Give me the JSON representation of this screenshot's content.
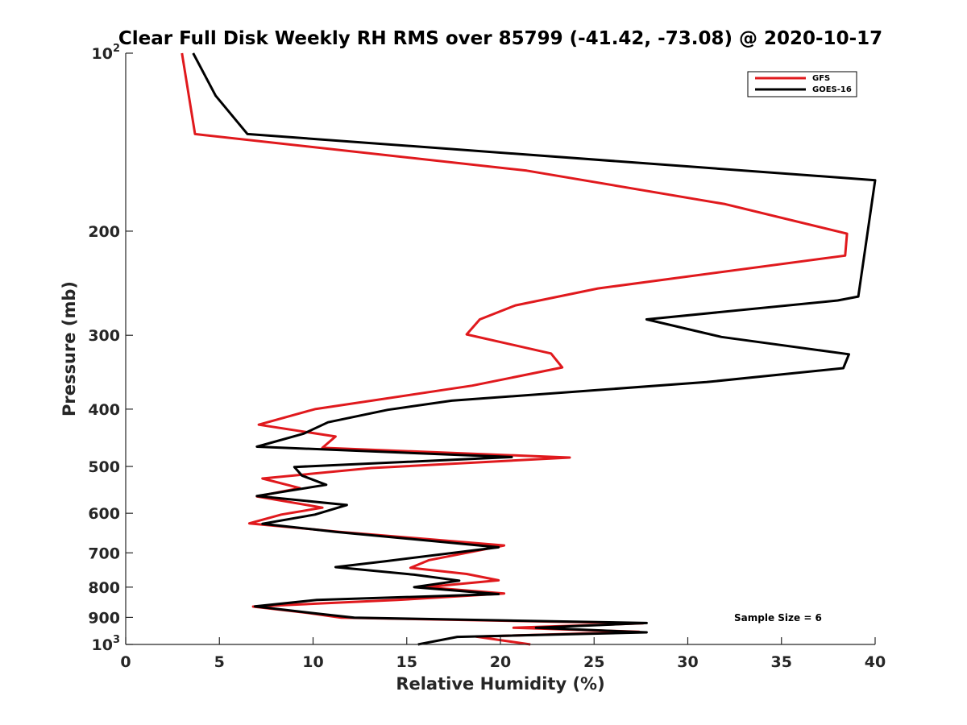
{
  "chart_data": {
    "type": "line",
    "title": "Clear Full Disk Weekly RH RMS over 85799 (-41.42, -73.08) @ 2020-10-17",
    "xlabel": "Relative Humidity (%)",
    "ylabel": "Pressure (mb)",
    "xlim": [
      0,
      40
    ],
    "ylim": [
      100,
      1000
    ],
    "yscale": "log",
    "y_reversed": true,
    "grid": false,
    "x_ticks": [
      {
        "value": 0,
        "label": "0"
      },
      {
        "value": 5,
        "label": "5"
      },
      {
        "value": 10,
        "label": "10"
      },
      {
        "value": 15,
        "label": "15"
      },
      {
        "value": 20,
        "label": "20"
      },
      {
        "value": 25,
        "label": "25"
      },
      {
        "value": 30,
        "label": "30"
      },
      {
        "value": 35,
        "label": "35"
      },
      {
        "value": 40,
        "label": "40"
      }
    ],
    "y_ticks": [
      {
        "value": 100,
        "label": "10",
        "sup": "2"
      },
      {
        "value": 200,
        "label": "200"
      },
      {
        "value": 300,
        "label": "300"
      },
      {
        "value": 400,
        "label": "400"
      },
      {
        "value": 500,
        "label": "500"
      },
      {
        "value": 600,
        "label": "600"
      },
      {
        "value": 700,
        "label": "700"
      },
      {
        "value": 800,
        "label": "800"
      },
      {
        "value": 900,
        "label": "900"
      },
      {
        "value": 1000,
        "label": "10",
        "sup": "3"
      }
    ],
    "legend": {
      "placement": "top-right"
    },
    "annotation": "Sample Size = 6",
    "series": [
      {
        "name": "GFS",
        "color": "#e0191d",
        "points": [
          [
            3.0,
            100
          ],
          [
            3.7,
            137
          ],
          [
            21.4,
            158
          ],
          [
            32.0,
            180
          ],
          [
            38.5,
            202
          ],
          [
            38.4,
            220
          ],
          [
            25.2,
            250
          ],
          [
            20.8,
            267
          ],
          [
            18.9,
            282
          ],
          [
            18.2,
            299
          ],
          [
            22.7,
            322
          ],
          [
            23.3,
            340
          ],
          [
            18.5,
            365
          ],
          [
            10.1,
            400
          ],
          [
            7.1,
            425
          ],
          [
            11.2,
            445
          ],
          [
            10.5,
            465
          ],
          [
            23.7,
            483
          ],
          [
            13.1,
            503
          ],
          [
            7.3,
            524
          ],
          [
            9.3,
            544
          ],
          [
            7.0,
            562
          ],
          [
            10.5,
            587
          ],
          [
            8.3,
            603
          ],
          [
            6.6,
            624
          ],
          [
            11.4,
            645
          ],
          [
            20.2,
            680
          ],
          [
            16.2,
            720
          ],
          [
            15.2,
            742
          ],
          [
            18.2,
            760
          ],
          [
            19.9,
            779
          ],
          [
            16.0,
            800
          ],
          [
            20.2,
            820
          ],
          [
            14.5,
            841
          ],
          [
            6.8,
            863
          ],
          [
            9.8,
            885
          ],
          [
            11.5,
            901
          ],
          [
            27.6,
            921
          ],
          [
            20.7,
            937
          ],
          [
            27.4,
            952
          ],
          [
            18.7,
            970
          ],
          [
            21.6,
            1000
          ]
        ]
      },
      {
        "name": "GOES-16",
        "color": "#000000",
        "points": [
          [
            3.6,
            100
          ],
          [
            4.8,
            118
          ],
          [
            6.5,
            137
          ],
          [
            40.0,
            164
          ],
          [
            39.1,
            258
          ],
          [
            38.0,
            262
          ],
          [
            27.8,
            282
          ],
          [
            31.8,
            302
          ],
          [
            38.6,
            323
          ],
          [
            38.3,
            341
          ],
          [
            31.0,
            360
          ],
          [
            17.4,
            387
          ],
          [
            14.0,
            401
          ],
          [
            10.8,
            421
          ],
          [
            9.5,
            440
          ],
          [
            7.0,
            463
          ],
          [
            20.6,
            482
          ],
          [
            9.0,
            501
          ],
          [
            9.4,
            518
          ],
          [
            10.7,
            537
          ],
          [
            7.0,
            561
          ],
          [
            11.8,
            581
          ],
          [
            10.1,
            603
          ],
          [
            7.3,
            625
          ],
          [
            11.2,
            645
          ],
          [
            19.9,
            685
          ],
          [
            13.9,
            723
          ],
          [
            11.2,
            740
          ],
          [
            15.4,
            762
          ],
          [
            17.8,
            780
          ],
          [
            15.4,
            800
          ],
          [
            19.9,
            822
          ],
          [
            10.2,
            841
          ],
          [
            6.9,
            862
          ],
          [
            10.0,
            885
          ],
          [
            12.2,
            901
          ],
          [
            27.8,
            920
          ],
          [
            21.9,
            937
          ],
          [
            27.8,
            954
          ],
          [
            17.7,
            971
          ],
          [
            15.6,
            1000
          ]
        ]
      }
    ]
  }
}
